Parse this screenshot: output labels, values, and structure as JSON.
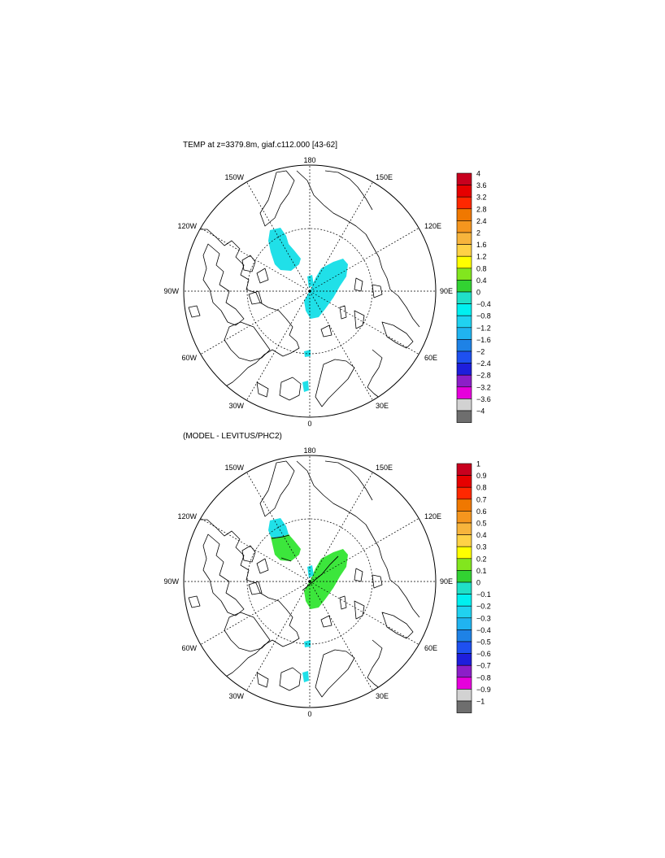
{
  "panels": [
    {
      "title": "TEMP at z=3379.8m, giaf.c112.000 [43-62]",
      "longitude_labels": [
        "180",
        "150E",
        "120E",
        "90E",
        "60E",
        "30E",
        "0",
        "30W",
        "60W",
        "90W",
        "120W",
        "150W"
      ],
      "colorbar_labels": [
        "4",
        "3.6",
        "3.2",
        "2.8",
        "2.4",
        "2",
        "1.6",
        "1.2",
        "0.8",
        "0.4",
        "0",
        "−0.4",
        "−0.8",
        "−1.2",
        "−1.6",
        "−2",
        "−2.4",
        "−2.8",
        "−3.2",
        "−3.6",
        "−4"
      ]
    },
    {
      "title": "(MODEL - LEVITUS/PHC2)",
      "longitude_labels": [
        "180",
        "150E",
        "120E",
        "90E",
        "60E",
        "30E",
        "0",
        "30W",
        "60W",
        "90W",
        "120W",
        "150W"
      ],
      "colorbar_labels": [
        "1",
        "0.9",
        "0.8",
        "0.7",
        "0.6",
        "0.5",
        "0.4",
        "0.3",
        "0.2",
        "0.1",
        "0",
        "−0.1",
        "−0.2",
        "−0.3",
        "−0.4",
        "−0.5",
        "−0.6",
        "−0.7",
        "−0.8",
        "−0.9",
        "−1"
      ]
    }
  ],
  "colorbar_colors": [
    "#c8001e",
    "#e60000",
    "#ff2800",
    "#f07800",
    "#f5961e",
    "#f7b43c",
    "#ffd246",
    "#ffff00",
    "#82e61e",
    "#32d232",
    "#20e0c8",
    "#00f0f0",
    "#20d2f0",
    "#20b4f0",
    "#1e82e6",
    "#1e50f0",
    "#1e1edc",
    "#8c1ec8",
    "#e600dc",
    "#d2d2d2",
    "#6e6e6e"
  ],
  "field_colors": {
    "cold_anomaly": "#20e0e8",
    "warm_anomaly": "#3ce63c"
  }
}
